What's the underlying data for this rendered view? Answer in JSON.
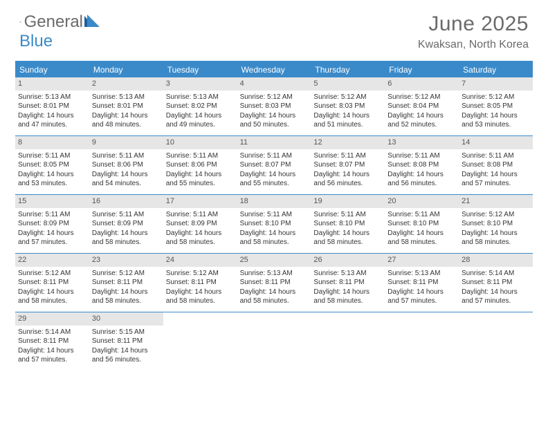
{
  "brand": {
    "part1": "General",
    "part2": "Blue"
  },
  "title": {
    "month": "June 2025",
    "location": "Kwaksan, North Korea"
  },
  "colors": {
    "primary": "#3a8ac9",
    "header_text": "#6a6a6a",
    "daynum_bg": "#e6e6e6",
    "body_text": "#333333",
    "background": "#ffffff"
  },
  "typography": {
    "month_fontsize": 30,
    "location_fontsize": 16,
    "dayhead_fontsize": 12,
    "cell_fontsize": 10
  },
  "day_labels": [
    "Sunday",
    "Monday",
    "Tuesday",
    "Wednesday",
    "Thursday",
    "Friday",
    "Saturday"
  ],
  "weeks": [
    [
      {
        "n": "1",
        "sr": "Sunrise: 5:13 AM",
        "ss": "Sunset: 8:01 PM",
        "dl": "Daylight: 14 hours and 47 minutes."
      },
      {
        "n": "2",
        "sr": "Sunrise: 5:13 AM",
        "ss": "Sunset: 8:01 PM",
        "dl": "Daylight: 14 hours and 48 minutes."
      },
      {
        "n": "3",
        "sr": "Sunrise: 5:13 AM",
        "ss": "Sunset: 8:02 PM",
        "dl": "Daylight: 14 hours and 49 minutes."
      },
      {
        "n": "4",
        "sr": "Sunrise: 5:12 AM",
        "ss": "Sunset: 8:03 PM",
        "dl": "Daylight: 14 hours and 50 minutes."
      },
      {
        "n": "5",
        "sr": "Sunrise: 5:12 AM",
        "ss": "Sunset: 8:03 PM",
        "dl": "Daylight: 14 hours and 51 minutes."
      },
      {
        "n": "6",
        "sr": "Sunrise: 5:12 AM",
        "ss": "Sunset: 8:04 PM",
        "dl": "Daylight: 14 hours and 52 minutes."
      },
      {
        "n": "7",
        "sr": "Sunrise: 5:12 AM",
        "ss": "Sunset: 8:05 PM",
        "dl": "Daylight: 14 hours and 53 minutes."
      }
    ],
    [
      {
        "n": "8",
        "sr": "Sunrise: 5:11 AM",
        "ss": "Sunset: 8:05 PM",
        "dl": "Daylight: 14 hours and 53 minutes."
      },
      {
        "n": "9",
        "sr": "Sunrise: 5:11 AM",
        "ss": "Sunset: 8:06 PM",
        "dl": "Daylight: 14 hours and 54 minutes."
      },
      {
        "n": "10",
        "sr": "Sunrise: 5:11 AM",
        "ss": "Sunset: 8:06 PM",
        "dl": "Daylight: 14 hours and 55 minutes."
      },
      {
        "n": "11",
        "sr": "Sunrise: 5:11 AM",
        "ss": "Sunset: 8:07 PM",
        "dl": "Daylight: 14 hours and 55 minutes."
      },
      {
        "n": "12",
        "sr": "Sunrise: 5:11 AM",
        "ss": "Sunset: 8:07 PM",
        "dl": "Daylight: 14 hours and 56 minutes."
      },
      {
        "n": "13",
        "sr": "Sunrise: 5:11 AM",
        "ss": "Sunset: 8:08 PM",
        "dl": "Daylight: 14 hours and 56 minutes."
      },
      {
        "n": "14",
        "sr": "Sunrise: 5:11 AM",
        "ss": "Sunset: 8:08 PM",
        "dl": "Daylight: 14 hours and 57 minutes."
      }
    ],
    [
      {
        "n": "15",
        "sr": "Sunrise: 5:11 AM",
        "ss": "Sunset: 8:09 PM",
        "dl": "Daylight: 14 hours and 57 minutes."
      },
      {
        "n": "16",
        "sr": "Sunrise: 5:11 AM",
        "ss": "Sunset: 8:09 PM",
        "dl": "Daylight: 14 hours and 58 minutes."
      },
      {
        "n": "17",
        "sr": "Sunrise: 5:11 AM",
        "ss": "Sunset: 8:09 PM",
        "dl": "Daylight: 14 hours and 58 minutes."
      },
      {
        "n": "18",
        "sr": "Sunrise: 5:11 AM",
        "ss": "Sunset: 8:10 PM",
        "dl": "Daylight: 14 hours and 58 minutes."
      },
      {
        "n": "19",
        "sr": "Sunrise: 5:11 AM",
        "ss": "Sunset: 8:10 PM",
        "dl": "Daylight: 14 hours and 58 minutes."
      },
      {
        "n": "20",
        "sr": "Sunrise: 5:11 AM",
        "ss": "Sunset: 8:10 PM",
        "dl": "Daylight: 14 hours and 58 minutes."
      },
      {
        "n": "21",
        "sr": "Sunrise: 5:12 AM",
        "ss": "Sunset: 8:10 PM",
        "dl": "Daylight: 14 hours and 58 minutes."
      }
    ],
    [
      {
        "n": "22",
        "sr": "Sunrise: 5:12 AM",
        "ss": "Sunset: 8:11 PM",
        "dl": "Daylight: 14 hours and 58 minutes."
      },
      {
        "n": "23",
        "sr": "Sunrise: 5:12 AM",
        "ss": "Sunset: 8:11 PM",
        "dl": "Daylight: 14 hours and 58 minutes."
      },
      {
        "n": "24",
        "sr": "Sunrise: 5:12 AM",
        "ss": "Sunset: 8:11 PM",
        "dl": "Daylight: 14 hours and 58 minutes."
      },
      {
        "n": "25",
        "sr": "Sunrise: 5:13 AM",
        "ss": "Sunset: 8:11 PM",
        "dl": "Daylight: 14 hours and 58 minutes."
      },
      {
        "n": "26",
        "sr": "Sunrise: 5:13 AM",
        "ss": "Sunset: 8:11 PM",
        "dl": "Daylight: 14 hours and 58 minutes."
      },
      {
        "n": "27",
        "sr": "Sunrise: 5:13 AM",
        "ss": "Sunset: 8:11 PM",
        "dl": "Daylight: 14 hours and 57 minutes."
      },
      {
        "n": "28",
        "sr": "Sunrise: 5:14 AM",
        "ss": "Sunset: 8:11 PM",
        "dl": "Daylight: 14 hours and 57 minutes."
      }
    ],
    [
      {
        "n": "29",
        "sr": "Sunrise: 5:14 AM",
        "ss": "Sunset: 8:11 PM",
        "dl": "Daylight: 14 hours and 57 minutes."
      },
      {
        "n": "30",
        "sr": "Sunrise: 5:15 AM",
        "ss": "Sunset: 8:11 PM",
        "dl": "Daylight: 14 hours and 56 minutes."
      },
      null,
      null,
      null,
      null,
      null
    ]
  ]
}
